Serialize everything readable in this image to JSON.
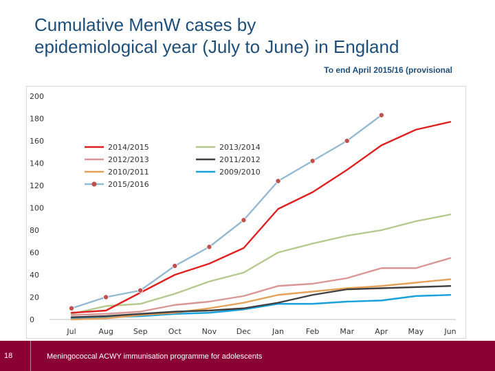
{
  "title": {
    "line1": "Cumulative MenW cases by",
    "line2": "epidemiological year (July to June) in England"
  },
  "subtitle": "To end April 2015/16 (provisional",
  "footer": {
    "slide_number": "18",
    "text": "Meningococcal ACWY immunisation programme for adolescents",
    "color": "#8a0033"
  },
  "chart_data": {
    "type": "line",
    "title": "",
    "xlabel": "",
    "ylabel": "",
    "categories": [
      "Jul",
      "Aug",
      "Sep",
      "Oct",
      "Nov",
      "Dec",
      "Jan",
      "Feb",
      "Mar",
      "Apr",
      "May",
      "Jun"
    ],
    "ylim": [
      0,
      200
    ],
    "yticks": [
      0,
      20,
      40,
      60,
      80,
      100,
      120,
      140,
      160,
      180,
      200
    ],
    "legend_position": "upper-left",
    "series": [
      {
        "name": "2014/2015",
        "color": "#e02020",
        "markers": false,
        "values": [
          6,
          8,
          24,
          40,
          50,
          64,
          99,
          114,
          134,
          156,
          170,
          177
        ]
      },
      {
        "name": "2013/2014",
        "color": "#b5c98e",
        "markers": false,
        "values": [
          5,
          12,
          14,
          23,
          34,
          42,
          60,
          68,
          75,
          80,
          88,
          94
        ]
      },
      {
        "name": "2012/2013",
        "color": "#d99694",
        "markers": false,
        "values": [
          4,
          5,
          7,
          13,
          16,
          21,
          30,
          32,
          37,
          46,
          46,
          55
        ]
      },
      {
        "name": "2011/2012",
        "color": "#404040",
        "markers": false,
        "values": [
          2,
          3,
          5,
          7,
          8,
          10,
          15,
          22,
          27,
          28,
          29,
          30
        ]
      },
      {
        "name": "2010/2011",
        "color": "#e4a15a",
        "markers": false,
        "values": [
          0,
          1,
          4,
          6,
          10,
          15,
          22,
          25,
          28,
          30,
          33,
          36
        ]
      },
      {
        "name": "2009/2010",
        "color": "#1aa0dc",
        "markers": false,
        "values": [
          1,
          2,
          3,
          5,
          6,
          9,
          14,
          14,
          16,
          17,
          21,
          22
        ]
      },
      {
        "name": "2015/2016",
        "color": "#94b9d3",
        "markers": true,
        "marker_color": "#c0504d",
        "values": [
          10,
          20,
          26,
          48,
          65,
          89,
          124,
          142,
          160,
          183,
          null,
          null
        ]
      }
    ]
  }
}
